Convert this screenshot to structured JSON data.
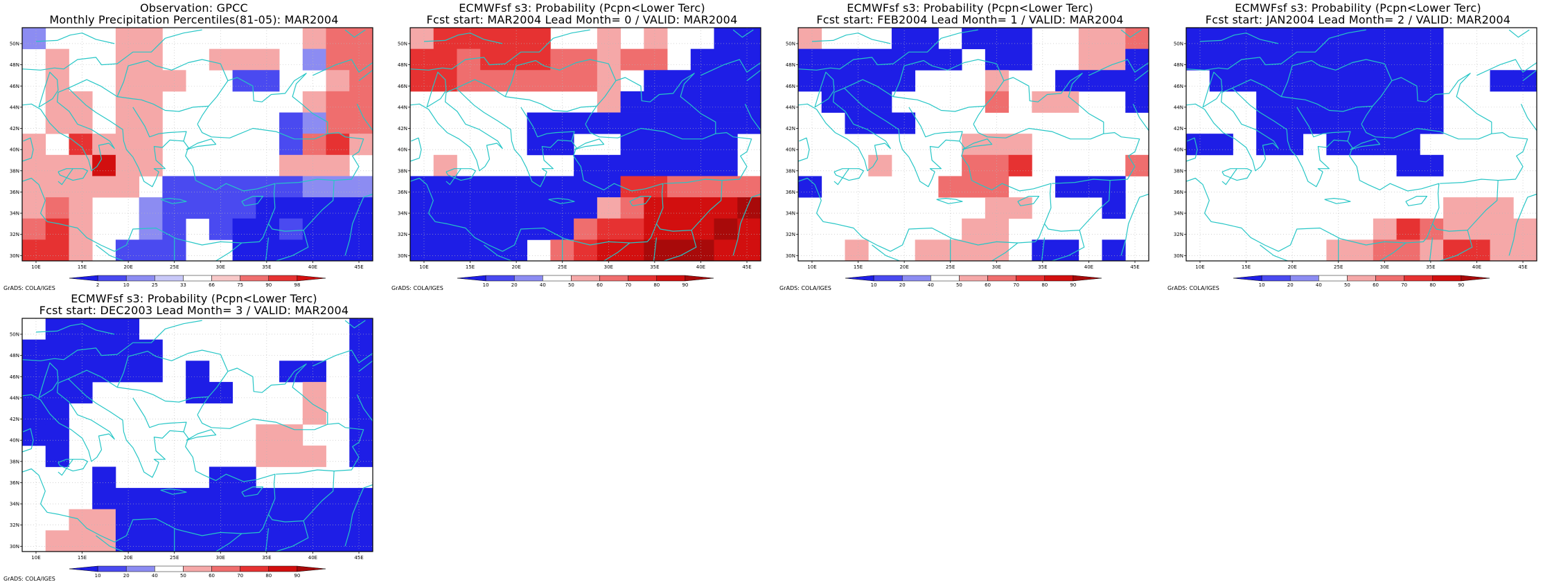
{
  "figure": {
    "lat_ticks": [
      "50N",
      "48N",
      "46N",
      "44N",
      "42N",
      "40N",
      "38N",
      "36N",
      "34N",
      "32N",
      "30N"
    ],
    "lon_ticks": [
      "10E",
      "15E",
      "20E",
      "25E",
      "30E",
      "35E",
      "40E",
      "45E"
    ],
    "credit": "GrADS: COLA/IGES",
    "coast_color": "#26c6c6",
    "colors": {
      "b1": "#1e1ee6",
      "b2": "#4a4af0",
      "b3": "#8c8cf2",
      "w": "#ffffff",
      "r1": "#f5a8a8",
      "r2": "#ef6e6e",
      "r3": "#e63232",
      "r4": "#d20f0f",
      "r5": "#a80a0a"
    }
  },
  "panels": [
    {
      "id": "gpcc",
      "title_line1": "Observation: GPCC",
      "title_line2": "Monthly Precipitation Percentiles(81-05): MAR2004",
      "colorbar": {
        "labels": [
          "2",
          "10",
          "25",
          "33",
          "66",
          "75",
          "90",
          "98"
        ],
        "colors": [
          "#1e1ee6",
          "#4a4af0",
          "#8c8cf2",
          "#c8c8f8",
          "#ffffff",
          "#f8c8c8",
          "#ef6e6e",
          "#e63232",
          "#d20f0f"
        ]
      }
    },
    {
      "id": "lead0",
      "title_line1": "ECMWFsf s3: Probability (Pcpn<Lower Terc)",
      "title_line2": "Fcst start: MAR2004   Lead Month= 0 / VALID: MAR2004",
      "colorbar": {
        "labels": [
          "10",
          "20",
          "40",
          "50",
          "60",
          "70",
          "80",
          "90"
        ],
        "colors": [
          "#1e1ee6",
          "#4a4af0",
          "#8c8cf2",
          "#ffffff",
          "#f5a8a8",
          "#ef6e6e",
          "#e63232",
          "#d20f0f",
          "#a80a0a"
        ]
      }
    },
    {
      "id": "lead1",
      "title_line1": "ECMWFsf s3: Probability (Pcpn<Lower Terc)",
      "title_line2": "Fcst start: FEB2004   Lead Month= 1 / VALID: MAR2004",
      "colorbar": {
        "labels": [
          "10",
          "20",
          "40",
          "50",
          "60",
          "70",
          "80",
          "90"
        ],
        "colors": [
          "#1e1ee6",
          "#4a4af0",
          "#8c8cf2",
          "#ffffff",
          "#f5a8a8",
          "#ef6e6e",
          "#e63232",
          "#d20f0f",
          "#a80a0a"
        ]
      }
    },
    {
      "id": "lead2",
      "title_line1": "ECMWFsf s3: Probability (Pcpn<Lower Terc)",
      "title_line2": "Fcst start: JAN2004   Lead Month= 2 / VALID: MAR2004",
      "colorbar": {
        "labels": [
          "10",
          "20",
          "40",
          "50",
          "60",
          "70",
          "80",
          "90"
        ],
        "colors": [
          "#1e1ee6",
          "#4a4af0",
          "#8c8cf2",
          "#ffffff",
          "#f5a8a8",
          "#ef6e6e",
          "#e63232",
          "#d20f0f",
          "#a80a0a"
        ]
      }
    },
    {
      "id": "lead3",
      "title_line1": "ECMWFsf s3: Probability (Pcpn<Lower Terc)",
      "title_line2": "Fcst start: DEC2003   Lead Month= 3 / VALID: MAR2004",
      "colorbar": {
        "labels": [
          "10",
          "20",
          "40",
          "50",
          "60",
          "70",
          "80",
          "90"
        ],
        "colors": [
          "#1e1ee6",
          "#4a4af0",
          "#8c8cf2",
          "#ffffff",
          "#f5a8a8",
          "#ef6e6e",
          "#e63232",
          "#d20f0f",
          "#a80a0a"
        ]
      }
    }
  ],
  "grids": {
    "gpcc": [
      "b3 w w w r1 r1 w w w w w w r1 r2 r2",
      "w r1 w w r1 r1 w w r1 r1 r1 w b3 r2 r2",
      "w r1 w w r1 r1 r1 w w b2 b2 w w r1 r2",
      "w r1 r1 w r1 r1 w w w w w w r1 r2 r2",
      "w r1 r1 w r1 r1 w w w w w b2 b3 r2 r2",
      "r1 w r3 r1 r1 r1 w w w w w b2 r2 r3 r1",
      "r1 r1 r1 r4 r1 r1 w w w w w r1 r1 r1 w",
      "r1 r1 r1 r1 r1 w b2 b2 b2 b2 b2 b2 b3 b3 b3",
      "r1 r2 r1 w w b3 b2 b2 b2 b2 b1 b1 b1 b1 b1",
      "r2 r3 r1 w w b3 b2 w b2 b1 b1 b2 b1 b1 b1",
      "r3 r3 r1 w b2 b2 b2 w w b1 b1 b1 b1 b1 b1"
    ],
    "lead0": [
      "r1 r3 r3 r3 r3 r3 w w r1 w r1 w w b1 b1",
      "r3 r3 r2 r3 r3 r3 r2 r2 r1 r2 r2 w b1 b1 b1",
      "r3 r3 r2 r2 r2 r2 r2 r2 r1 w b1 b1 b1 b1 b1",
      "w w w w w w w w r1 b1 b1 b1 b1 b1 b1",
      "w w w w w b1 b1 b1 b1 b1 b1 b1 b1 b1 b1",
      "w w w w w b1 b1 w w b1 b1 b1 b1 b1 w",
      "w r1 w w w w w b1 b1 b1 b1 b1 b1 b1 w",
      "b1 b1 b1 b1 b1 b1 b1 b1 b1 r3 r3 r2 r2 r2 r2",
      "b1 b1 b1 b1 b1 b1 b1 b1 r1 r2 r4 r4 r4 r4 r5",
      "b1 b1 b1 b1 b1 b1 b1 r2 r3 r3 r4 r4 r4 r5 r4",
      "b1 b1 b1 b1 b1 w r2 r3 r4 r4 r5 r5 r5 r4 r4"
    ],
    "lead1": [
      "r1 w w w b1 b1 w b1 b1 b1 w w r1 r1 r2",
      "b1 b1 b1 b1 b1 b1 b1 w b1 b1 w w r1 r1 b1",
      "b1 b1 b1 b1 b1 w w w r1 w w b1 b1 b1 b1",
      "w b1 b1 b1 w w w w r2 w r1 r1 w w b1",
      "w w b1 b1 b1 w w w w w w w w w w",
      "w w w w w w w r1 r1 r1 w w w w w",
      "w w w r1 w w w r2 r2 r3 w w w w r2",
      "b1 w w w w w r2 r2 r2 w w b1 b1 b1 w",
      "w w w w w w w w r1 r1 w w w b1 w",
      "w w w w w w w r1 r1 w w w w w w",
      "w w r1 w w r1 r1 r1 r1 w b1 b1 w b1 w"
    ],
    "lead2": [
      "b1 b1 b1 b1 b1 b1 b1 b1 b1 b1 b1 w w w w",
      "b1 b1 b1 b1 b1 b1 b1 b1 b1 b1 b1 w w w w",
      "w b1 b1 b1 b1 b1 b1 b1 b1 b1 b1 w w b1 b1",
      "w w w b1 b1 b1 b1 b1 b1 b1 b1 w w w w",
      "w w w b1 b1 b1 b1 b1 b1 b1 b1 w w w w",
      "b1 b1 w b1 b1 w b1 b1 b1 b1 w w w w w",
      "w w w w w w w w w b1 b1 w w w w",
      "w w w w w w w w w w w w w w w",
      "w w w w w w w w w w w r1 r1 r1 w",
      "w w w w w w w w r1 r3 r2 r1 r1 r1 r1",
      "w w w w w w r1 r1 r2 r2 r1 r3 r3 r1 r1"
    ],
    "lead3": [
      "w b1 b1 b1 b1 w w w w w w w w w b1",
      "b1 b1 b1 b1 b1 b1 w w w w w w w w b1",
      "b1 b1 b1 b1 b1 b1 w b1 w w w b1 b1 w b1",
      "b1 b1 b1 w w w w b1 b1 w w w r1 w b1",
      "b1 b1 w w w w w w w w w w r1 w b1",
      "b1 b1 w w w w w w w w r1 r1 w w b1",
      "w b1 w w w w w w w w r1 r1 r1 w b1",
      "w w w b1 w w w w b1 b1 w w w w w",
      "w w w b1 b1 b1 b1 b1 b1 b1 b1 b1 b1 b1 b1",
      "w w r1 r1 b1 b1 b1 b1 b1 b1 b1 b1 b1 b1 b1",
      "w r1 r1 r1 b1 b1 b1 b1 b1 b1 b1 b1 b1 b1 b1"
    ]
  }
}
